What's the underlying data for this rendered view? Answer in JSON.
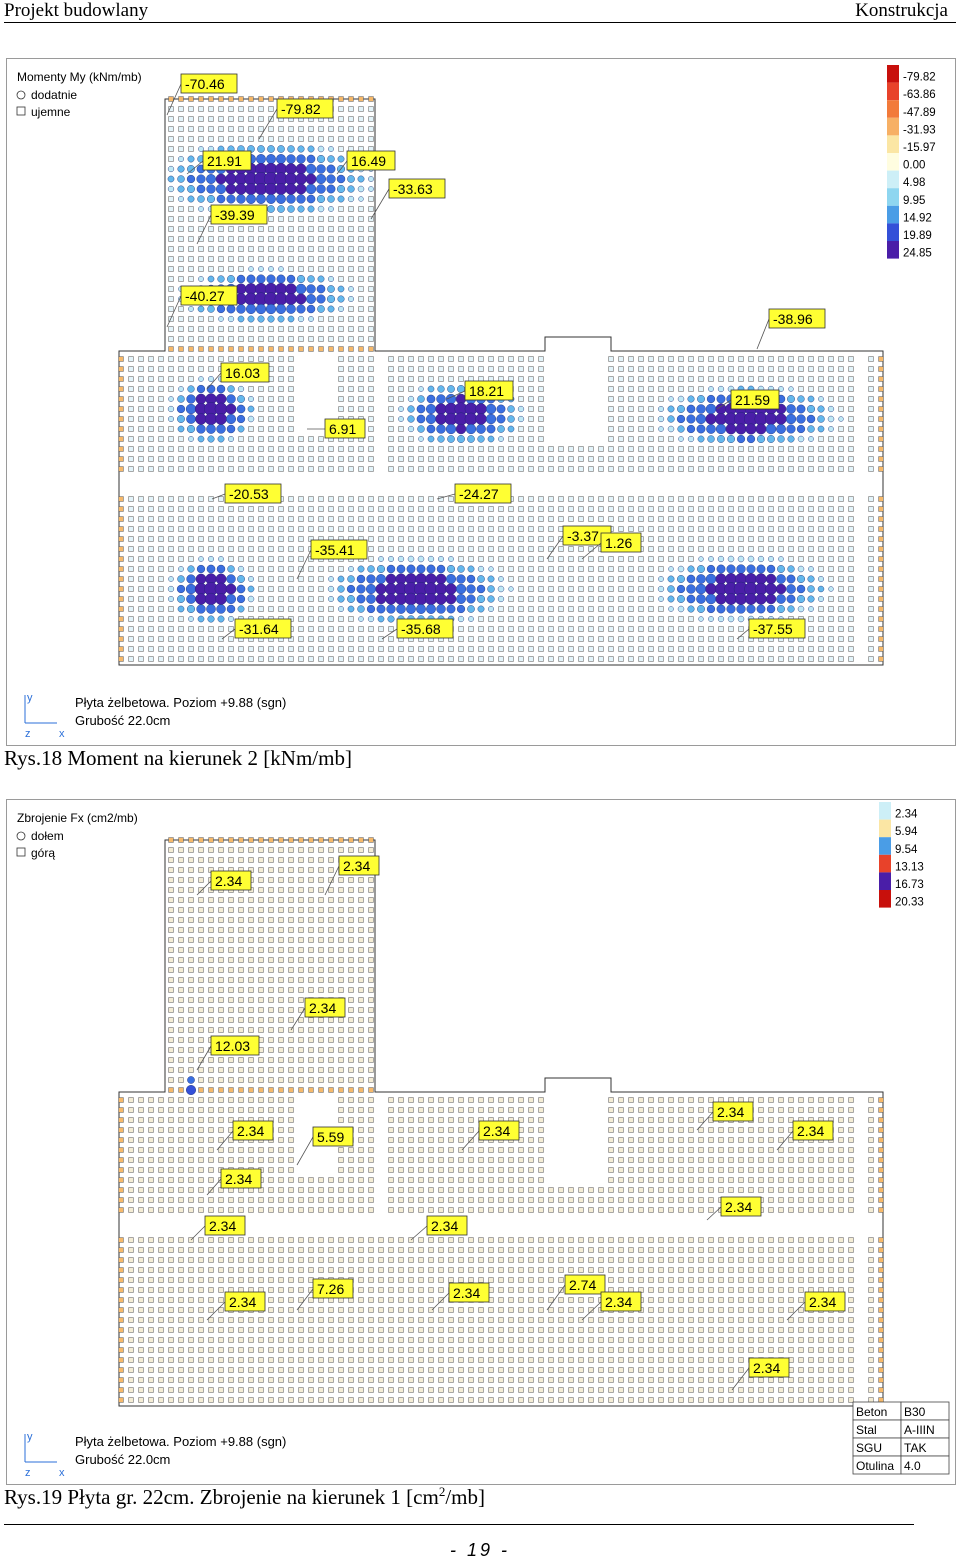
{
  "header": {
    "left": "Projekt budowlany",
    "right": "Konstrukcja"
  },
  "figure1": {
    "legend_title": "Momenty My (kNm/mb)",
    "legend_pos": "dodatnie",
    "legend_neg": "ujemne",
    "scale_values": [
      "-79.82",
      "-63.86",
      "-47.89",
      "-31.93",
      "-15.97",
      "0.00",
      "4.98",
      "9.95",
      "14.92",
      "19.89",
      "24.85"
    ],
    "scale_colors": [
      "#c8100c",
      "#e8422a",
      "#f27a3a",
      "#f7b065",
      "#fbe6a4",
      "#fffde0",
      "#cdeff7",
      "#8ed6f0",
      "#4a9de6",
      "#3450d8",
      "#4a1ea8"
    ],
    "labels": [
      "-70.46",
      "-79.82",
      "21.91",
      "16.49",
      "-33.63",
      "-39.39",
      "-40.27",
      "-38.96",
      "16.03",
      "18.21",
      "21.59",
      "6.91",
      "-20.53",
      "-24.27",
      "-3.37",
      "1.26",
      "-35.41",
      "-31.64",
      "-35.68",
      "-37.55"
    ],
    "footer_line1": "Płyta żelbetowa. Poziom +9.88 (sgn)",
    "footer_line2": "Grubość 22.0cm",
    "axis_y": "y",
    "axis_z": "z",
    "axis_x": "x",
    "caption": "Rys.18 Moment na kierunek 2 [kNm/mb]"
  },
  "figure2": {
    "legend_title": "Zbrojenie Fx (cm2/mb)",
    "legend_pos": "dołem",
    "legend_neg": "górą",
    "scale_values": [
      "2.34",
      "5.94",
      "9.54",
      "13.13",
      "16.73",
      "20.33"
    ],
    "scale_colors": [
      "#cdeff7",
      "#fbe6a4",
      "#4a9de6",
      "#e8422a",
      "#4a1ea8",
      "#c8100c"
    ],
    "labels": [
      "2.34",
      "2.34",
      "2.34",
      "12.03",
      "2.34",
      "5.59",
      "2.34",
      "2.34",
      "2.34",
      "2.34",
      "2.34",
      "2.34",
      "2.34",
      "7.26",
      "2.34",
      "2.74",
      "2.34",
      "2.34",
      "2.34",
      "2.34"
    ],
    "footer_line1": "Płyta żelbetowa. Poziom +9.88 (sgn)",
    "footer_line2": "Grubość 22.0cm",
    "axis_y": "y",
    "axis_z": "z",
    "axis_x": "x",
    "table": [
      {
        "k": "Beton",
        "v": "B30"
      },
      {
        "k": "Stal",
        "v": "A-IIIN"
      },
      {
        "k": "SGU",
        "v": "TAK"
      },
      {
        "k": "Otulina",
        "v": "4.0"
      }
    ],
    "caption_main": "Rys.19 Płyta gr. 22cm. Zbrojenie na kierunek 1 [cm",
    "caption_sup": "2",
    "caption_end": "/mb]"
  },
  "page_number": "- 19 -"
}
